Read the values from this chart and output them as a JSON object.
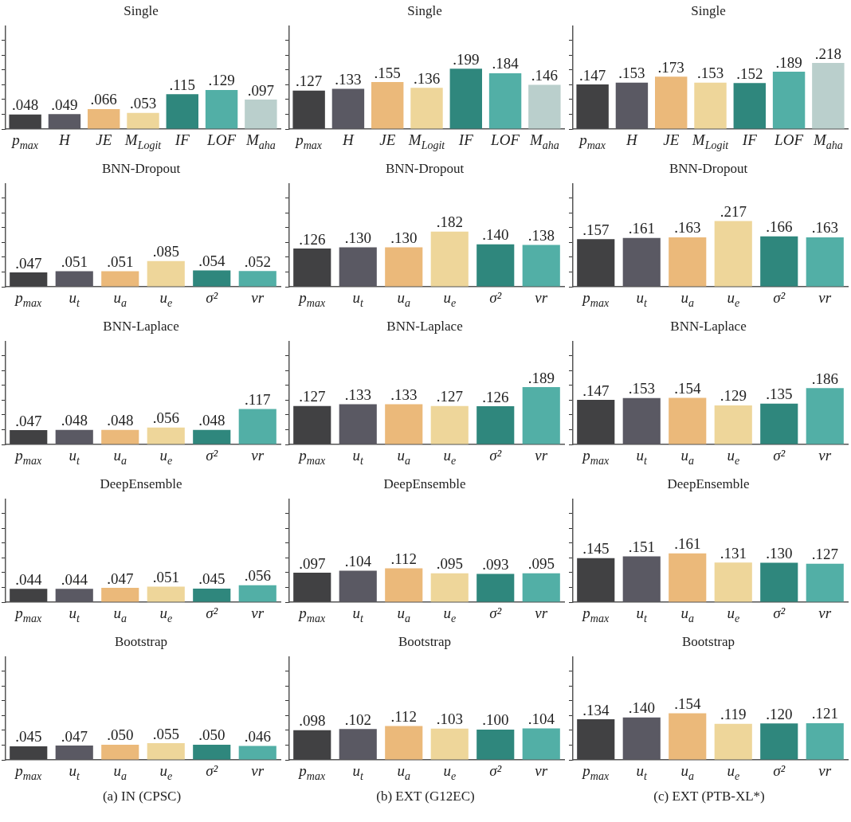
{
  "chart_data": [
    {
      "type": "bar",
      "title": "Single",
      "categories": [
        "p$_{max}$",
        "H",
        "JE",
        "M$_{Logit}$",
        "IF",
        "LOF",
        "M$_{aha}$"
      ],
      "values": [
        0.048,
        0.049,
        0.066,
        0.053,
        0.115,
        0.129,
        0.097
      ],
      "colors": [
        "#414143",
        "#5a5963",
        "#ebb97a",
        "#eed69a",
        "#2f877d",
        "#52afa6",
        "#bacfcc"
      ],
      "value_labels": [
        ".048",
        ".049",
        ".066",
        ".053",
        ".115",
        ".129",
        ".097"
      ],
      "tick_labels": "x",
      "grid": false,
      "legend": false
    },
    {
      "type": "bar",
      "title": "Single",
      "categories": [
        "p$_{max}$",
        "H",
        "JE",
        "M$_{Logit}$",
        "IF",
        "LOF",
        "M$_{aha}$"
      ],
      "values": [
        0.127,
        0.133,
        0.155,
        0.136,
        0.199,
        0.184,
        0.146
      ],
      "colors": [
        "#414143",
        "#5a5963",
        "#ebb97a",
        "#eed69a",
        "#2f877d",
        "#52afa6",
        "#bacfcc"
      ],
      "value_labels": [
        ".127",
        ".133",
        ".155",
        ".136",
        ".199",
        ".184",
        ".146"
      ],
      "tick_labels": "x",
      "grid": false,
      "legend": false
    },
    {
      "type": "bar",
      "title": "Single",
      "categories": [
        "p$_{max}$",
        "H",
        "JE",
        "M$_{Logit}$",
        "IF",
        "LOF",
        "M$_{aha}$"
      ],
      "values": [
        0.147,
        0.153,
        0.173,
        0.153,
        0.152,
        0.189,
        0.218
      ],
      "colors": [
        "#414143",
        "#5a5963",
        "#ebb97a",
        "#eed69a",
        "#2f877d",
        "#52afa6",
        "#bacfcc"
      ],
      "value_labels": [
        ".147",
        ".153",
        ".173",
        ".153",
        ".152",
        ".189",
        ".218"
      ],
      "tick_labels": "x",
      "grid": false,
      "legend": false
    },
    {
      "type": "bar",
      "title": "BNN-Dropout",
      "categories": [
        "p$_{max}$",
        "u$_{t}$",
        "u$_{a}$",
        "u$_{e}$",
        "σ²",
        "vr"
      ],
      "values": [
        0.047,
        0.051,
        0.051,
        0.085,
        0.054,
        0.052
      ],
      "colors": [
        "#414143",
        "#5a5963",
        "#ebb97a",
        "#eed69a",
        "#2f877d",
        "#52afa6"
      ],
      "value_labels": [
        ".047",
        ".051",
        ".051",
        ".085",
        ".054",
        ".052"
      ],
      "tick_labels": "x",
      "grid": false,
      "legend": false
    },
    {
      "type": "bar",
      "title": "BNN-Dropout",
      "categories": [
        "p$_{max}$",
        "u$_{t}$",
        "u$_{a}$",
        "u$_{e}$",
        "σ²",
        "vr"
      ],
      "values": [
        0.126,
        0.13,
        0.13,
        0.182,
        0.14,
        0.138
      ],
      "colors": [
        "#414143",
        "#5a5963",
        "#ebb97a",
        "#eed69a",
        "#2f877d",
        "#52afa6"
      ],
      "value_labels": [
        ".126",
        ".130",
        ".130",
        ".182",
        ".140",
        ".138"
      ],
      "tick_labels": "x",
      "grid": false,
      "legend": false
    },
    {
      "type": "bar",
      "title": "BNN-Dropout",
      "categories": [
        "p$_{max}$",
        "u$_{t}$",
        "u$_{a}$",
        "u$_{e}$",
        "σ²",
        "vr"
      ],
      "values": [
        0.157,
        0.161,
        0.163,
        0.217,
        0.166,
        0.163
      ],
      "colors": [
        "#414143",
        "#5a5963",
        "#ebb97a",
        "#eed69a",
        "#2f877d",
        "#52afa6"
      ],
      "value_labels": [
        ".157",
        ".161",
        ".163",
        ".217",
        ".166",
        ".163"
      ],
      "tick_labels": "x",
      "grid": false,
      "legend": false
    },
    {
      "type": "bar",
      "title": "BNN-Laplace",
      "categories": [
        "p$_{max}$",
        "u$_{t}$",
        "u$_{a}$",
        "u$_{e}$",
        "σ²",
        "vr"
      ],
      "values": [
        0.047,
        0.048,
        0.048,
        0.056,
        0.048,
        0.117
      ],
      "colors": [
        "#414143",
        "#5a5963",
        "#ebb97a",
        "#eed69a",
        "#2f877d",
        "#52afa6"
      ],
      "value_labels": [
        ".047",
        ".048",
        ".048",
        ".056",
        ".048",
        ".117"
      ],
      "tick_labels": "x",
      "grid": false,
      "legend": false
    },
    {
      "type": "bar",
      "title": "BNN-Laplace",
      "categories": [
        "p$_{max}$",
        "u$_{t}$",
        "u$_{a}$",
        "u$_{e}$",
        "σ²",
        "vr"
      ],
      "values": [
        0.127,
        0.133,
        0.133,
        0.127,
        0.126,
        0.189
      ],
      "colors": [
        "#414143",
        "#5a5963",
        "#ebb97a",
        "#eed69a",
        "#2f877d",
        "#52afa6"
      ],
      "value_labels": [
        ".127",
        ".133",
        ".133",
        ".127",
        ".126",
        ".189"
      ],
      "tick_labels": "x",
      "grid": false,
      "legend": false
    },
    {
      "type": "bar",
      "title": "BNN-Laplace",
      "categories": [
        "p$_{max}$",
        "u$_{t}$",
        "u$_{a}$",
        "u$_{e}$",
        "σ²",
        "vr"
      ],
      "values": [
        0.147,
        0.153,
        0.154,
        0.129,
        0.135,
        0.186
      ],
      "colors": [
        "#414143",
        "#5a5963",
        "#ebb97a",
        "#eed69a",
        "#2f877d",
        "#52afa6"
      ],
      "value_labels": [
        ".147",
        ".153",
        ".154",
        ".129",
        ".135",
        ".186"
      ],
      "tick_labels": "x",
      "grid": false,
      "legend": false
    },
    {
      "type": "bar",
      "title": "DeepEnsemble",
      "categories": [
        "p$_{max}$",
        "u$_{t}$",
        "u$_{a}$",
        "u$_{e}$",
        "σ²",
        "vr"
      ],
      "values": [
        0.044,
        0.044,
        0.047,
        0.051,
        0.045,
        0.056
      ],
      "colors": [
        "#414143",
        "#5a5963",
        "#ebb97a",
        "#eed69a",
        "#2f877d",
        "#52afa6"
      ],
      "value_labels": [
        ".044",
        ".044",
        ".047",
        ".051",
        ".045",
        ".056"
      ],
      "tick_labels": "x",
      "grid": false,
      "legend": false
    },
    {
      "type": "bar",
      "title": "DeepEnsemble",
      "categories": [
        "p$_{max}$",
        "u$_{t}$",
        "u$_{a}$",
        "u$_{e}$",
        "σ²",
        "vr"
      ],
      "values": [
        0.097,
        0.104,
        0.112,
        0.095,
        0.093,
        0.095
      ],
      "colors": [
        "#414143",
        "#5a5963",
        "#ebb97a",
        "#eed69a",
        "#2f877d",
        "#52afa6"
      ],
      "value_labels": [
        ".097",
        ".104",
        ".112",
        ".095",
        ".093",
        ".095"
      ],
      "tick_labels": "x",
      "grid": false,
      "legend": false
    },
    {
      "type": "bar",
      "title": "DeepEnsemble",
      "categories": [
        "p$_{max}$",
        "u$_{t}$",
        "u$_{a}$",
        "u$_{e}$",
        "σ²",
        "vr"
      ],
      "values": [
        0.145,
        0.151,
        0.161,
        0.131,
        0.13,
        0.127
      ],
      "colors": [
        "#414143",
        "#5a5963",
        "#ebb97a",
        "#eed69a",
        "#2f877d",
        "#52afa6"
      ],
      "value_labels": [
        ".145",
        ".151",
        ".161",
        ".131",
        ".130",
        ".127"
      ],
      "tick_labels": "x",
      "grid": false,
      "legend": false
    },
    {
      "type": "bar",
      "title": "Bootstrap",
      "categories": [
        "p$_{max}$",
        "u$_{t}$",
        "u$_{a}$",
        "u$_{e}$",
        "σ²",
        "vr"
      ],
      "values": [
        0.045,
        0.047,
        0.05,
        0.055,
        0.05,
        0.046
      ],
      "colors": [
        "#414143",
        "#5a5963",
        "#ebb97a",
        "#eed69a",
        "#2f877d",
        "#52afa6"
      ],
      "value_labels": [
        ".045",
        ".047",
        ".050",
        ".055",
        ".050",
        ".046"
      ],
      "tick_labels": "x",
      "grid": false,
      "legend": false,
      "annotations": [
        "(a) IN (CPSC)"
      ]
    },
    {
      "type": "bar",
      "title": "Bootstrap",
      "categories": [
        "p$_{max}$",
        "u$_{t}$",
        "u$_{a}$",
        "u$_{e}$",
        "σ²",
        "vr"
      ],
      "values": [
        0.098,
        0.102,
        0.112,
        0.103,
        0.1,
        0.104
      ],
      "colors": [
        "#414143",
        "#5a5963",
        "#ebb97a",
        "#eed69a",
        "#2f877d",
        "#52afa6"
      ],
      "value_labels": [
        ".098",
        ".102",
        ".112",
        ".103",
        ".100",
        ".104"
      ],
      "tick_labels": "x",
      "grid": false,
      "legend": false,
      "annotations": [
        "(b) EXT (G12EC)"
      ]
    },
    {
      "type": "bar",
      "title": "Bootstrap",
      "categories": [
        "p$_{max}$",
        "u$_{t}$",
        "u$_{a}$",
        "u$_{e}$",
        "σ²",
        "vr"
      ],
      "values": [
        0.134,
        0.14,
        0.154,
        0.119,
        0.12,
        0.121
      ],
      "colors": [
        "#414143",
        "#5a5963",
        "#ebb97a",
        "#eed69a",
        "#2f877d",
        "#52afa6"
      ],
      "value_labels": [
        ".134",
        ".140",
        ".154",
        ".119",
        ".120",
        ".121"
      ],
      "tick_labels": "x",
      "grid": false,
      "legend": false,
      "annotations": [
        "(c) EXT (PTB-XL*)"
      ]
    }
  ]
}
